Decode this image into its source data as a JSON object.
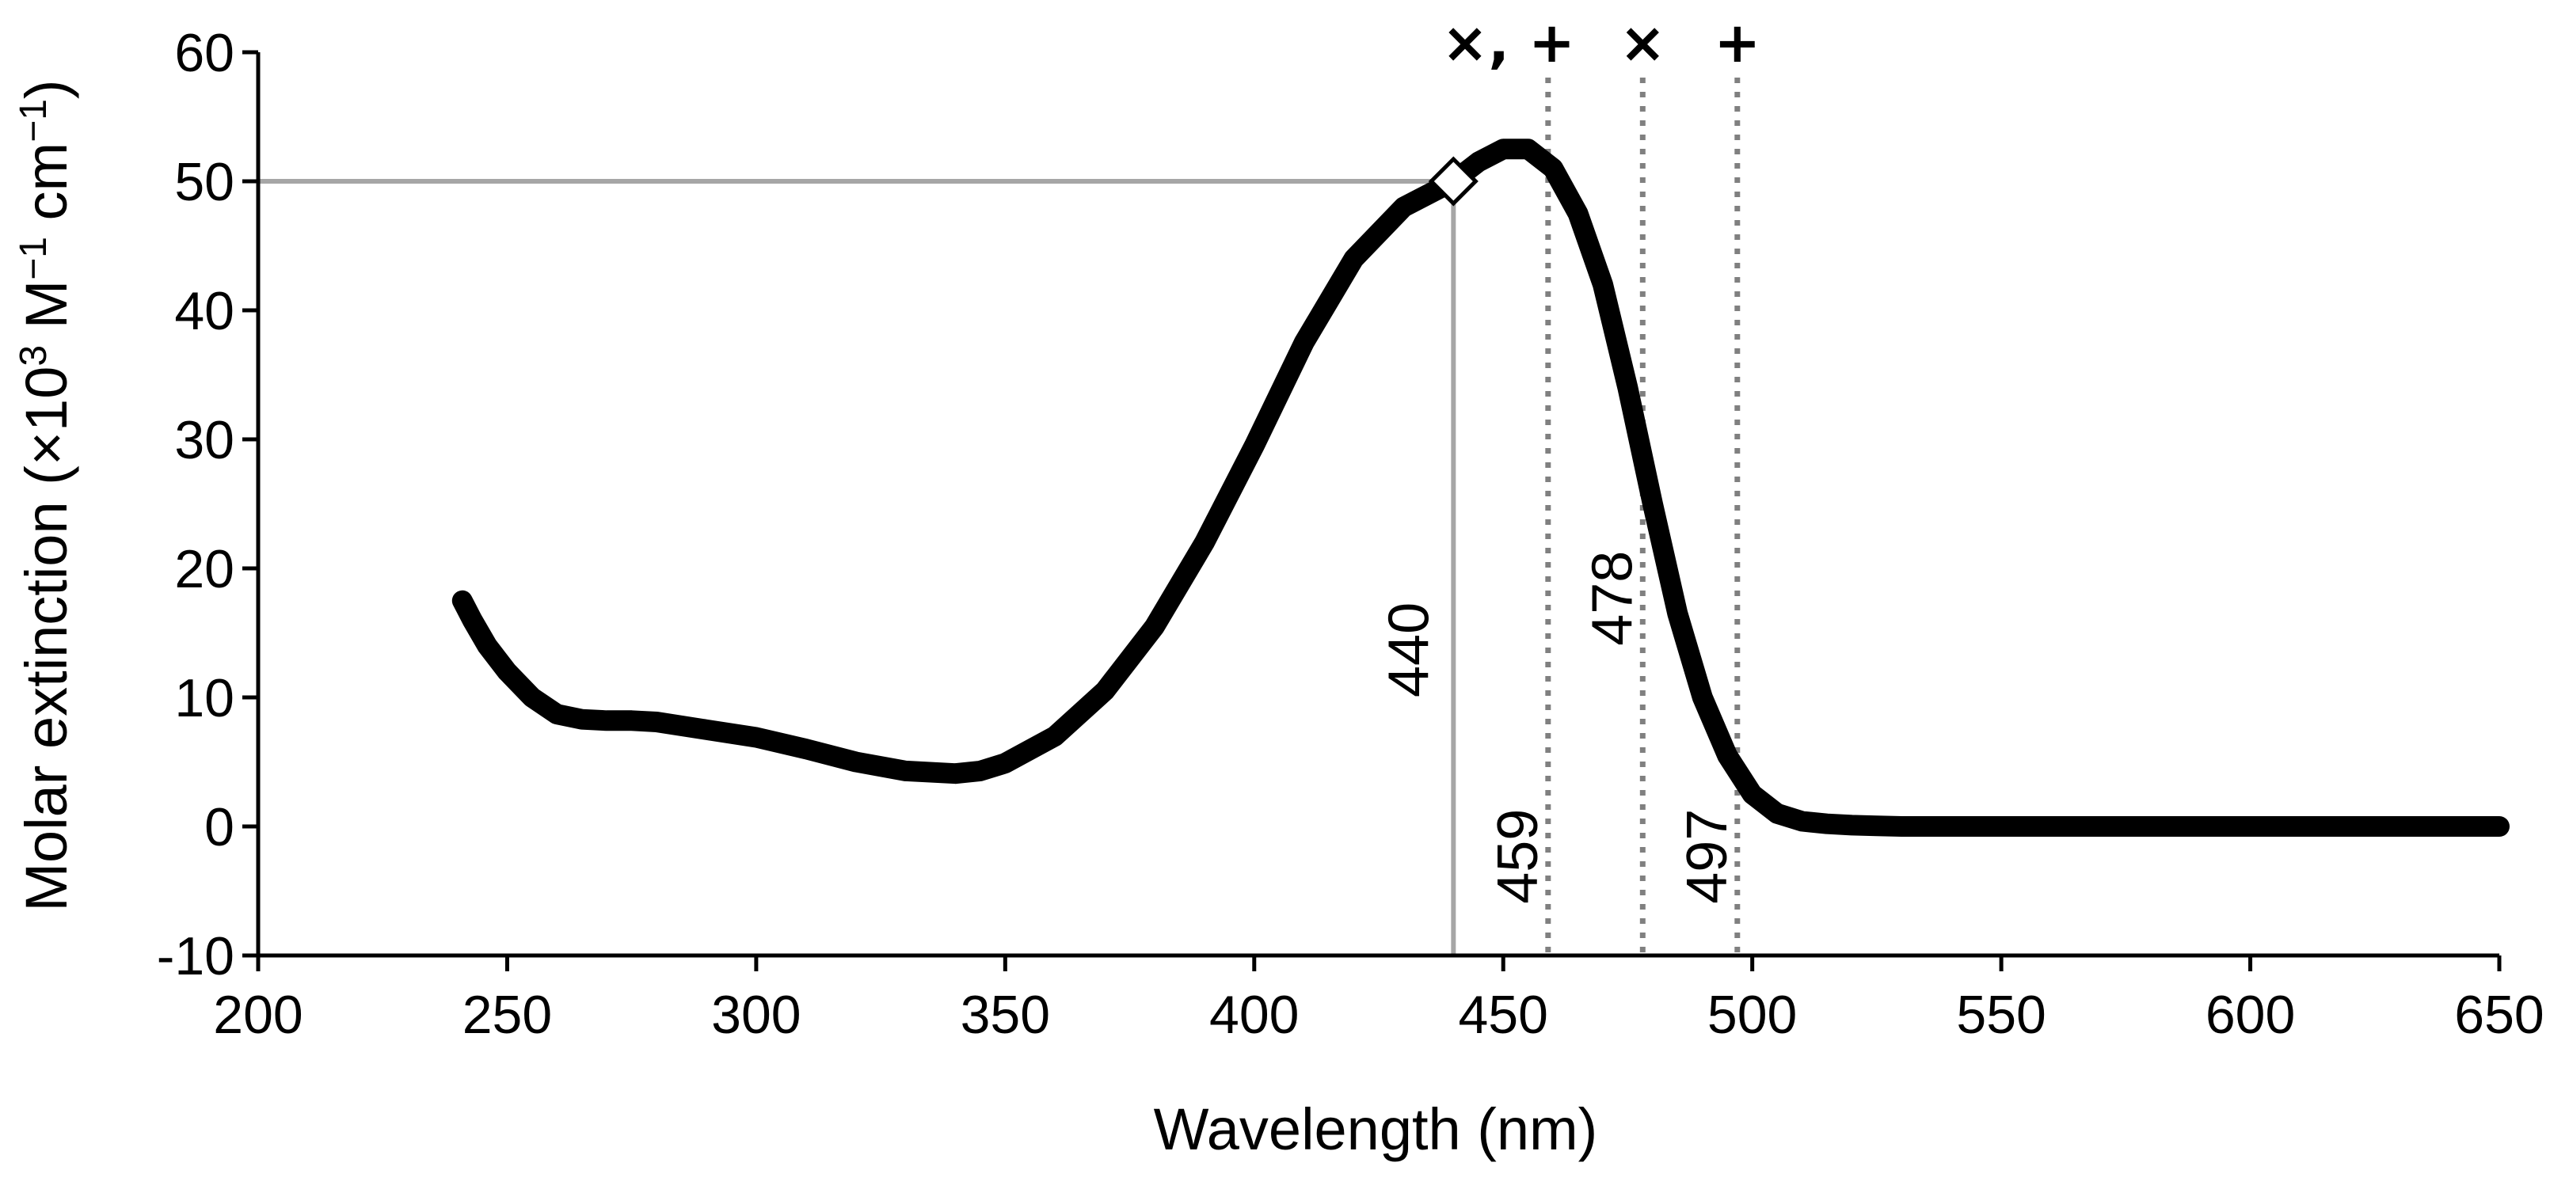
{
  "chart_data": {
    "type": "line",
    "title": "",
    "xlabel": "Wavelength (nm)",
    "ylabel_parts": {
      "pre": "Molar extinction (×10",
      "sup1": "3",
      "mid": " M",
      "sup2": "−1",
      "mid2": " cm",
      "sup3": "−1",
      "post": ")"
    },
    "xlim": [
      200,
      650
    ],
    "ylim": [
      -10,
      60
    ],
    "x_ticks": [
      200,
      250,
      300,
      350,
      400,
      450,
      500,
      550,
      600,
      650
    ],
    "y_ticks": [
      -10,
      0,
      10,
      20,
      30,
      40,
      50,
      60
    ],
    "series": [
      {
        "name": "Molar extinction",
        "color": "#000000",
        "x": [
          241,
          243,
          246,
          250,
          255,
          260,
          265,
          270,
          275,
          280,
          290,
          300,
          310,
          320,
          330,
          340,
          345,
          350,
          360,
          370,
          380,
          390,
          400,
          410,
          420,
          430,
          440,
          445,
          450,
          455,
          460,
          465,
          470,
          475,
          480,
          485,
          490,
          495,
          500,
          505,
          510,
          515,
          520,
          525,
          530,
          540,
          550,
          600,
          650
        ],
        "y": [
          17.5,
          16.0,
          14.0,
          12.0,
          10.0,
          8.7,
          8.3,
          8.2,
          8.2,
          8.1,
          7.5,
          6.9,
          6.0,
          5.0,
          4.3,
          4.1,
          4.3,
          4.9,
          7.0,
          10.5,
          15.5,
          22.0,
          29.5,
          37.5,
          44.0,
          48.0,
          50.0,
          51.5,
          52.5,
          52.5,
          51.0,
          47.5,
          42.0,
          34.0,
          25.0,
          16.5,
          10.0,
          5.5,
          2.5,
          1.0,
          0.4,
          0.2,
          0.1,
          0.05,
          0.0,
          0.0,
          0.0,
          0.0,
          0.0
        ]
      }
    ],
    "reference_point": {
      "x": 440,
      "y": 50,
      "marker": "diamond",
      "line_color": "#a6a6a6"
    },
    "vertical_markers": [
      {
        "x": 459,
        "label": "459",
        "symbol": "×, +"
      },
      {
        "x": 478,
        "label": "478",
        "symbol": "×"
      },
      {
        "x": 497,
        "label": "497",
        "symbol": "+"
      }
    ],
    "reference_label": "440",
    "colors": {
      "curve": "#000000",
      "reference": "#a6a6a6",
      "dotted": "#808080"
    }
  }
}
